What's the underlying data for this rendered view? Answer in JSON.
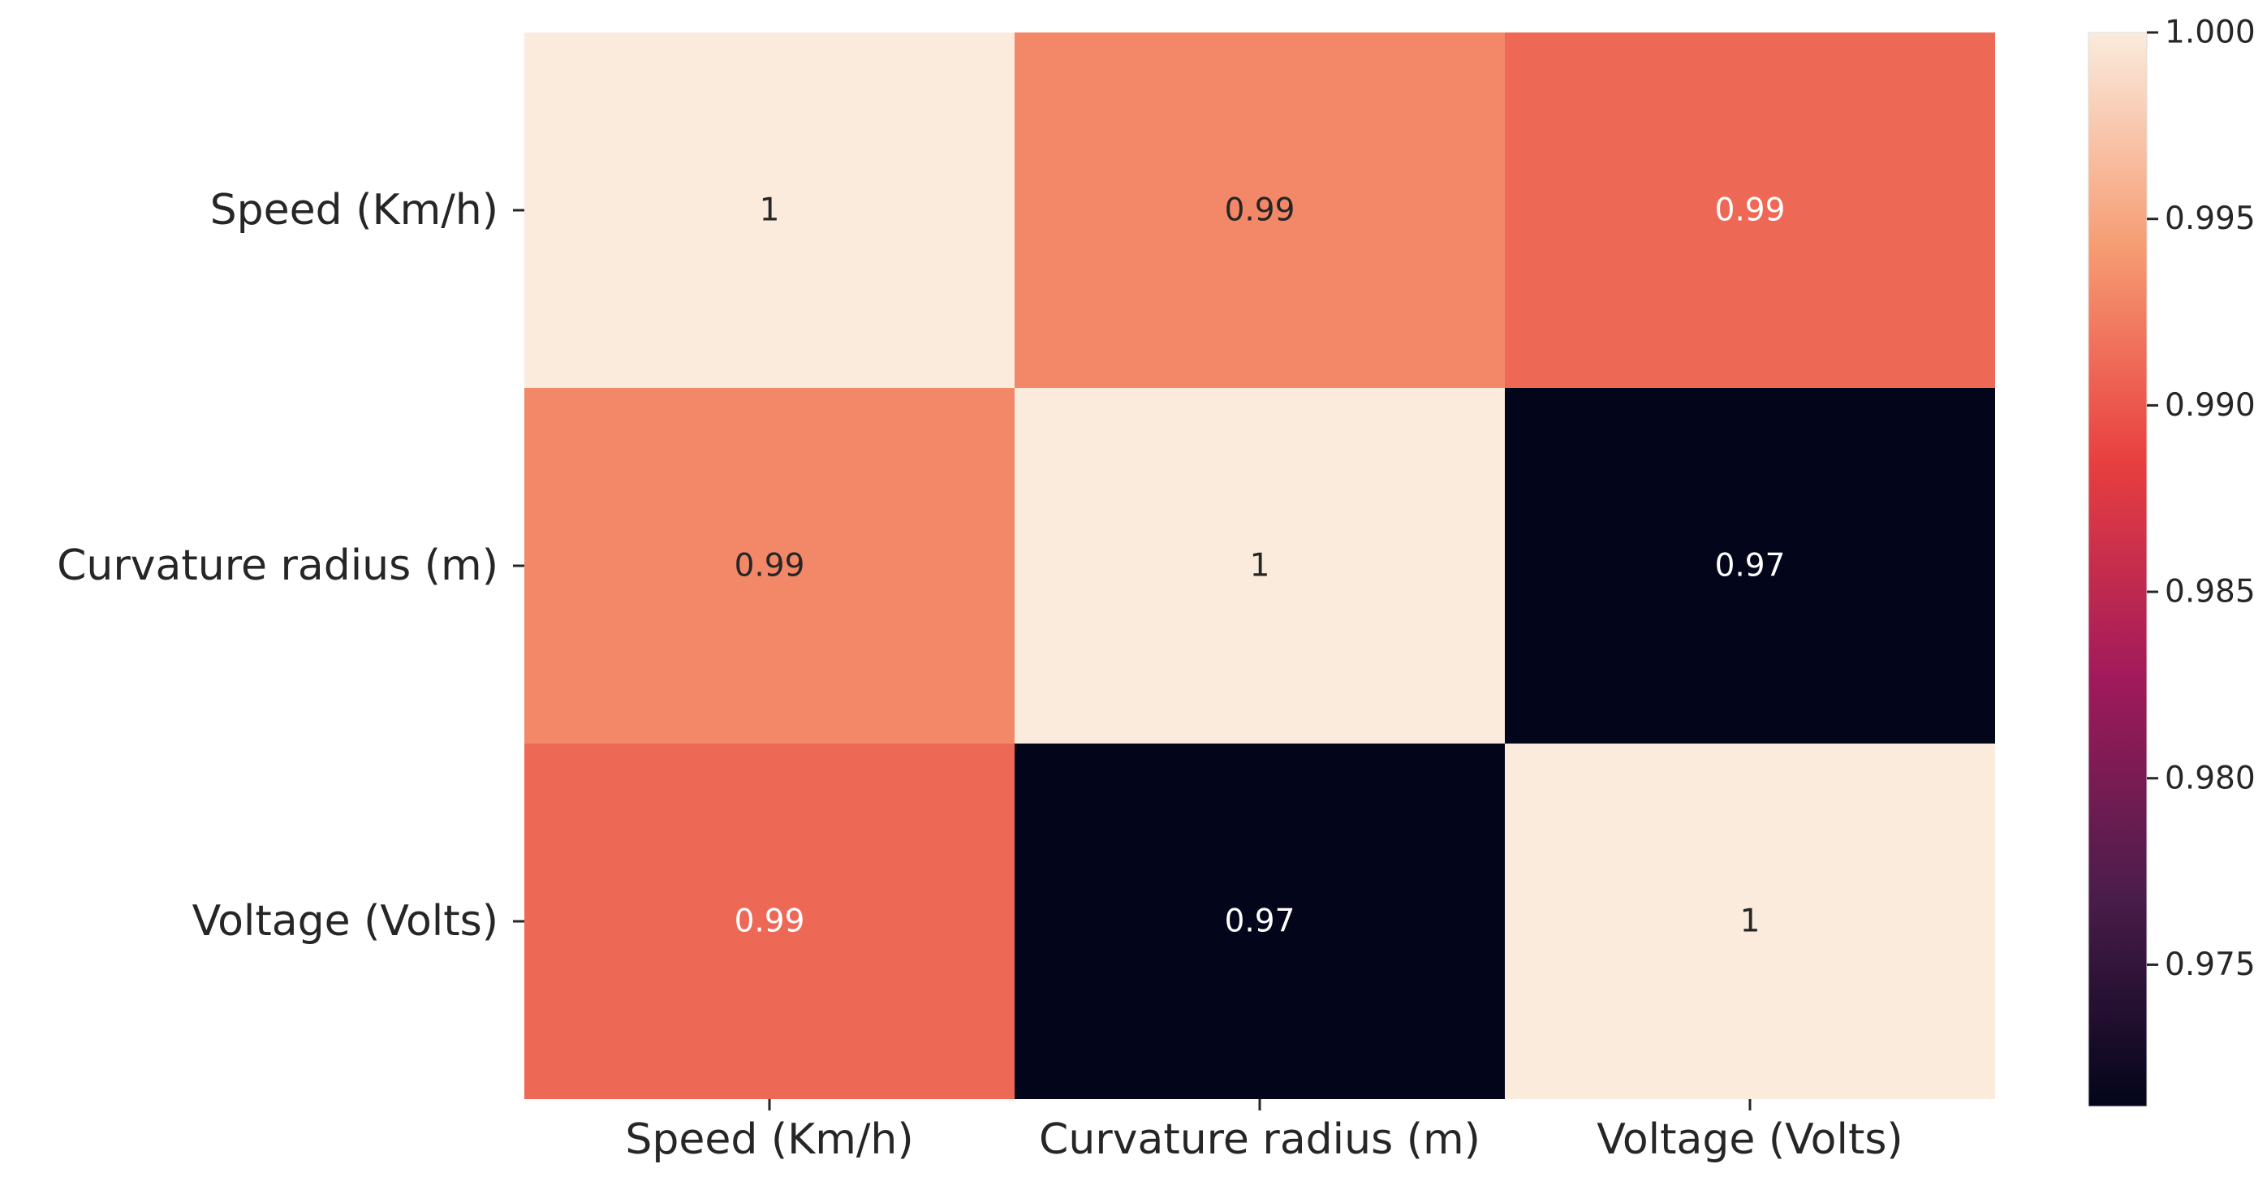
{
  "chart_data": {
    "type": "heatmap",
    "title": "",
    "xlabel": "",
    "ylabel": "",
    "rows": [
      "Speed (Km/h)",
      "Curvature radius (m)",
      "Voltage (Volts)"
    ],
    "columns": [
      "Speed (Km/h)",
      "Curvature radius (m)",
      "Voltage (Volts)"
    ],
    "values": [
      [
        1.0,
        0.993,
        0.991
      ],
      [
        0.993,
        1.0,
        0.971
      ],
      [
        0.991,
        0.971,
        1.0
      ]
    ],
    "annotations": [
      [
        "1",
        "0.99",
        "0.99"
      ],
      [
        "0.99",
        "1",
        "0.97"
      ],
      [
        "0.99",
        "0.97",
        "1"
      ]
    ],
    "colorbar": {
      "range": [
        0.9712,
        1.0
      ],
      "ticks": [
        0.975,
        0.98,
        0.985,
        0.99,
        0.995,
        1.0
      ],
      "tick_labels": [
        "0.975",
        "0.980",
        "0.985",
        "0.990",
        "0.995",
        "1.000"
      ],
      "colormap": "rocket",
      "stops": [
        "#03051a",
        "#4c1d4b",
        "#a11a5b",
        "#e83f3f",
        "#f69c73",
        "#faebdd"
      ]
    },
    "annotation_colors": {
      "dark": "#262626",
      "light": "#ffffff"
    }
  }
}
